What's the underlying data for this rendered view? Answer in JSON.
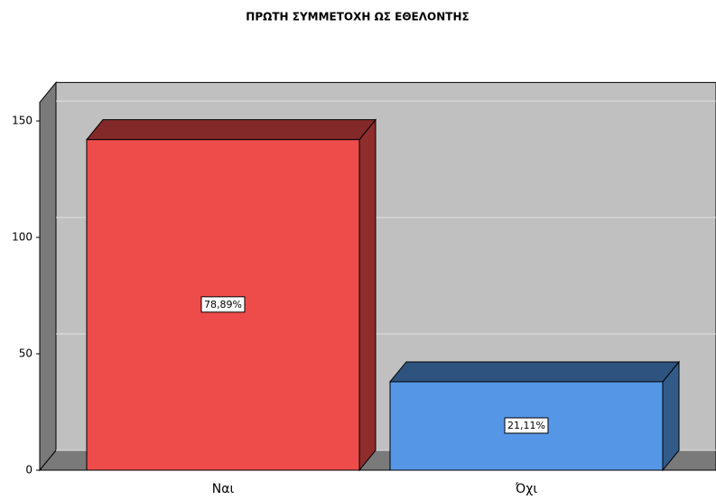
{
  "chart_data": {
    "type": "bar3d",
    "title": "ΠΡΩΤΗ ΣΥΜΜΕΤΟΧΗ ΩΣ ΕΘΕΛΟΝΤΗΣ",
    "categories": [
      "Ναι",
      "Όχι"
    ],
    "values": [
      142,
      38
    ],
    "value_labels": [
      "78,89%",
      "21,11%"
    ],
    "colors": [
      "#ee4b4b",
      "#5597e6"
    ],
    "ylim": [
      0,
      158
    ],
    "yticks": [
      0,
      50,
      100,
      150
    ],
    "grid": true
  }
}
